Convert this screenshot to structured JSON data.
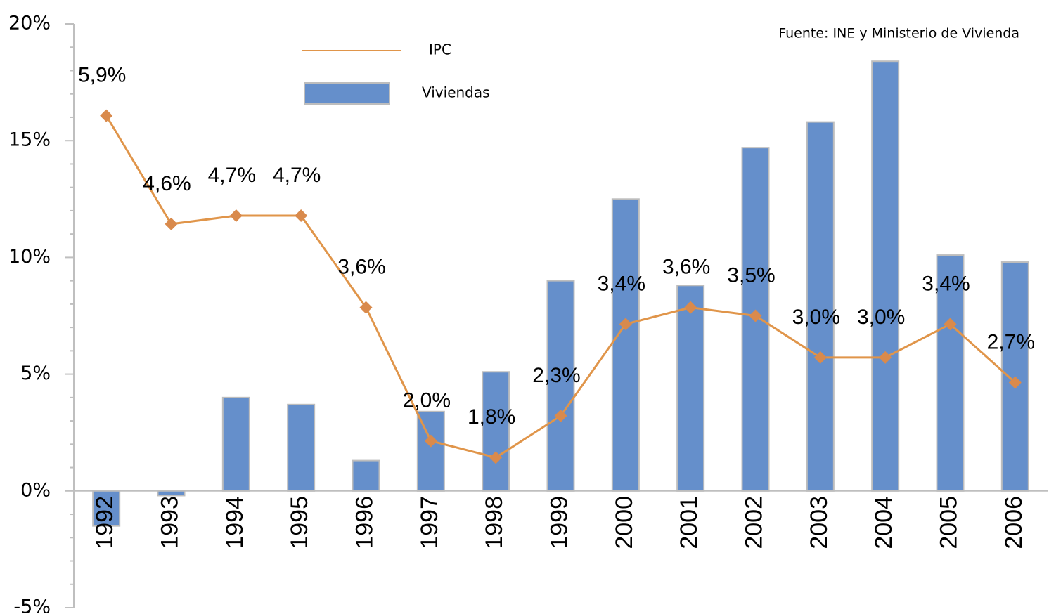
{
  "chart_data": {
    "type": "bar_line",
    "annotations": [
      "Fuente: INE y Ministerio de Vivienda"
    ],
    "categories": [
      "1992",
      "1993",
      "1994",
      "1995",
      "1996",
      "1997",
      "1998",
      "1999",
      "2000",
      "2001",
      "2002",
      "2003",
      "2004",
      "2005",
      "2006"
    ],
    "series": [
      {
        "name": "IPC",
        "type": "line",
        "axis": "y2",
        "color": "#e0954a",
        "marker_color": "#d98a4c",
        "values": [
          5.9,
          4.6,
          4.7,
          4.7,
          3.6,
          2.0,
          1.8,
          2.3,
          3.4,
          3.6,
          3.5,
          3.0,
          3.0,
          3.4,
          2.7
        ],
        "value_labels": [
          "5,9%",
          "4,6%",
          "4,7%",
          "4,7%",
          "3,6%",
          "2,0%",
          "1,8%",
          "2,3%",
          "3,4%",
          "3,6%",
          "3,5%",
          "3,0%",
          "3,0%",
          "3,4%",
          "2,7%"
        ]
      },
      {
        "name": "Viviendas",
        "type": "bar",
        "color": "#658fcb",
        "values": [
          -1.5,
          -0.2,
          4.0,
          3.7,
          1.3,
          3.4,
          5.1,
          9.0,
          12.5,
          8.8,
          14.7,
          15.8,
          18.4,
          10.1,
          9.8
        ]
      }
    ],
    "ylim": [
      -5,
      20
    ],
    "yticks": [
      {
        "value": -5,
        "label": "-5%"
      },
      {
        "value": 0,
        "label": "0%"
      },
      {
        "value": 5,
        "label": "5%"
      },
      {
        "value": 10,
        "label": "10%"
      },
      {
        "value": 15,
        "label": "15%"
      },
      {
        "value": 20,
        "label": "20%"
      }
    ],
    "y2lim": [
      0,
      7
    ],
    "grid": false,
    "legend": "top"
  }
}
